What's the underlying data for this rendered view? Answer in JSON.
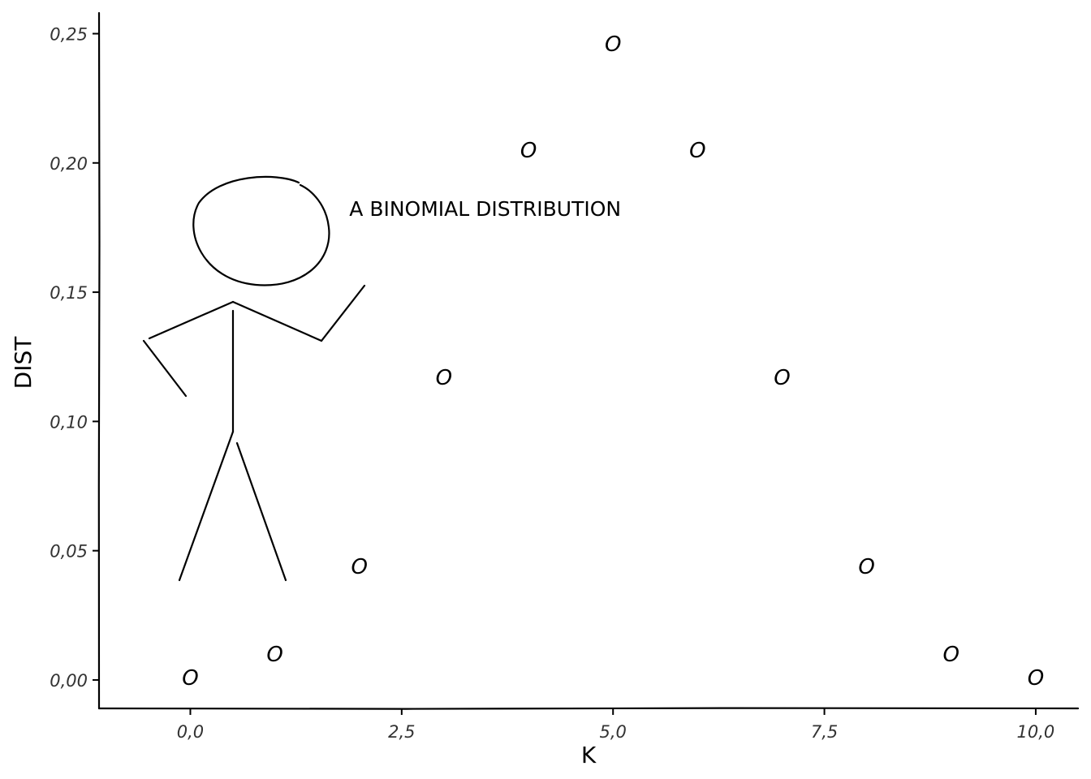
{
  "chart_data": {
    "type": "scatter",
    "x": [
      0,
      1,
      2,
      3,
      4,
      5,
      6,
      7,
      8,
      9,
      10
    ],
    "y": [
      0.001,
      0.01,
      0.044,
      0.117,
      0.205,
      0.246,
      0.205,
      0.117,
      0.044,
      0.01,
      0.001
    ],
    "point_label": "O",
    "xlabel": "K",
    "ylabel": "DIST",
    "xlim": [
      -1.08,
      10.5
    ],
    "ylim": [
      -0.011,
      0.258
    ],
    "xticks": [
      0,
      2.5,
      5,
      7.5,
      10
    ],
    "xtick_labels": [
      "0,0",
      "2,5",
      "5,0",
      "7,5",
      "10,0"
    ],
    "yticks": [
      0,
      0.05,
      0.1,
      0.15,
      0.2,
      0.25
    ],
    "ytick_labels": [
      "0,00",
      "0,05",
      "0,10",
      "0,15",
      "0,20",
      "0,25"
    ],
    "grid": false,
    "annotation": {
      "text": "A BINOMIAL DISTRIBUTION",
      "x": 1.88,
      "y": 0.1795
    },
    "stick_figure": true
  }
}
